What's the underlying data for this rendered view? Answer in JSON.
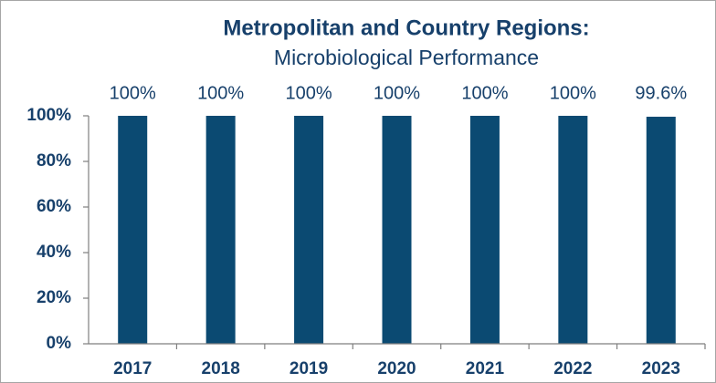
{
  "chart_data": {
    "type": "bar",
    "title": "Metropolitan and Country Regions:",
    "subtitle": "Microbiological Performance",
    "categories": [
      "2017",
      "2018",
      "2019",
      "2020",
      "2021",
      "2022",
      "2023"
    ],
    "values": [
      100,
      100,
      100,
      100,
      100,
      100,
      99.6
    ],
    "value_labels": [
      "100%",
      "100%",
      "100%",
      "100%",
      "100%",
      "100%",
      "99.6%"
    ],
    "color": "#0b4a72",
    "ylim": [
      0,
      100
    ],
    "yticks": [
      {
        "value": 0,
        "label": "0%"
      },
      {
        "value": 20,
        "label": "20%"
      },
      {
        "value": 40,
        "label": "40%"
      },
      {
        "value": 60,
        "label": "60%"
      },
      {
        "value": 80,
        "label": "80%"
      },
      {
        "value": 100,
        "label": "100%"
      }
    ],
    "grid": false
  }
}
